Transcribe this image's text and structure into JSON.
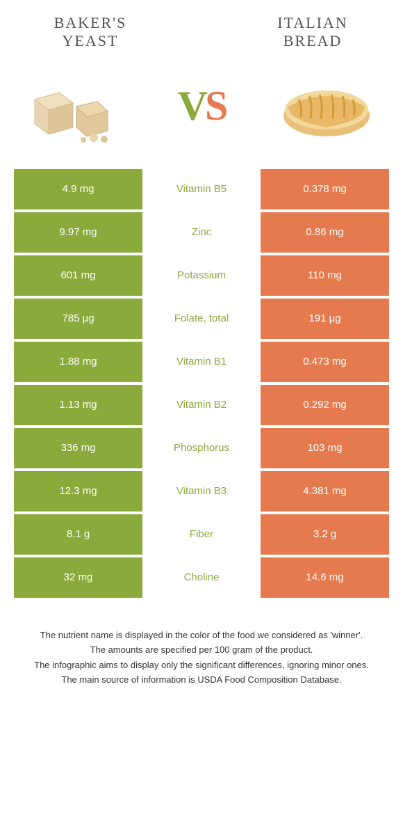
{
  "colors": {
    "left": "#8aaa3b",
    "right": "#e67a4f",
    "title": "#555555",
    "text": "#333333",
    "background": "#ffffff"
  },
  "header": {
    "left_title": "BAKER'S\nYEAST",
    "right_title": "ITALIAN\nBREAD",
    "vs_v": "V",
    "vs_s": "S"
  },
  "table": {
    "rows": [
      {
        "left": "4.9 mg",
        "nutrient": "Vitamin B5",
        "right": "0.378 mg",
        "winner": "left"
      },
      {
        "left": "9.97 mg",
        "nutrient": "Zinc",
        "right": "0.86 mg",
        "winner": "left"
      },
      {
        "left": "601 mg",
        "nutrient": "Potassium",
        "right": "110 mg",
        "winner": "left"
      },
      {
        "left": "785 µg",
        "nutrient": "Folate, total",
        "right": "191 µg",
        "winner": "left"
      },
      {
        "left": "1.88 mg",
        "nutrient": "Vitamin B1",
        "right": "0.473 mg",
        "winner": "left"
      },
      {
        "left": "1.13 mg",
        "nutrient": "Vitamin B2",
        "right": "0.292 mg",
        "winner": "left"
      },
      {
        "left": "336 mg",
        "nutrient": "Phosphorus",
        "right": "103 mg",
        "winner": "left"
      },
      {
        "left": "12.3 mg",
        "nutrient": "Vitamin B3",
        "right": "4.381 mg",
        "winner": "left"
      },
      {
        "left": "8.1 g",
        "nutrient": "Fiber",
        "right": "3.2 g",
        "winner": "left"
      },
      {
        "left": "32 mg",
        "nutrient": "Choline",
        "right": "14.6 mg",
        "winner": "left"
      }
    ]
  },
  "footer": {
    "line1": "The nutrient name is displayed in the color of the food we considered as 'winner'.",
    "line2": "The amounts are specified per 100 gram of the product.",
    "line3": "The infographic aims to display only the significant differences, ignoring minor ones.",
    "line4": "The main source of information is USDA Food Composition Database."
  }
}
